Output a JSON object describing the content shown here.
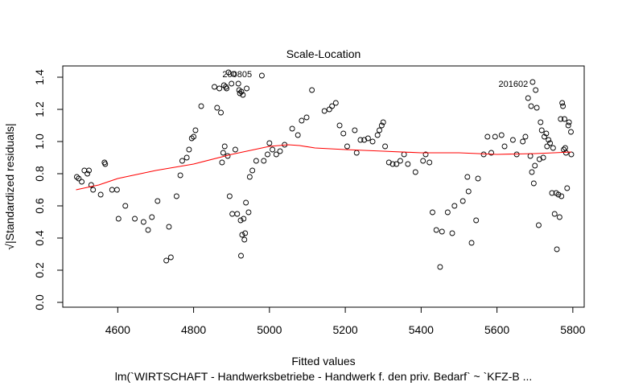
{
  "chart_data": {
    "type": "scatter",
    "title": "Scale-Location",
    "xlabel": "Fitted values",
    "ylabel_radical": "√",
    "ylabel": "|Standardized residuals|",
    "subtitle": "lm(`WIRTSCHAFT - Handwerksbetriebe - Handwerk f. den priv. Bedarf` ~ `KFZ-B ...",
    "xlim": [
      4455,
      5830
    ],
    "ylim": [
      -0.03,
      1.47
    ],
    "x_ticks": [
      4600,
      4800,
      5000,
      5200,
      5400,
      5600,
      5800
    ],
    "x_tick_labels": [
      "4600",
      "4800",
      "5000",
      "5200",
      "5400",
      "5600",
      "5800"
    ],
    "y_ticks": [
      0.0,
      0.2,
      0.4,
      0.6,
      0.8,
      1.0,
      1.2,
      1.4
    ],
    "y_tick_labels": [
      "0.0",
      "0.2",
      "0.4",
      "0.6",
      "0.8",
      "1.0",
      "1.2",
      "1.4"
    ],
    "grid": false,
    "colors": {
      "points": "#000000",
      "smoother": "#ff0000",
      "frame": "#000000"
    },
    "annotations": [
      {
        "text": "200805",
        "x": 4915,
        "y": 1.42,
        "anchor": "middle"
      },
      {
        "text": "201602",
        "x": 5682,
        "y": 1.36,
        "anchor": "end"
      }
    ],
    "points": [
      [
        4492,
        0.78
      ],
      [
        4497,
        0.77
      ],
      [
        4505,
        0.75
      ],
      [
        4512,
        0.82
      ],
      [
        4520,
        0.8
      ],
      [
        4524,
        0.82
      ],
      [
        4530,
        0.73
      ],
      [
        4535,
        0.7
      ],
      [
        4555,
        0.67
      ],
      [
        4565,
        0.87
      ],
      [
        4567,
        0.86
      ],
      [
        4585,
        0.7
      ],
      [
        4598,
        0.7
      ],
      [
        4602,
        0.52
      ],
      [
        4620,
        0.6
      ],
      [
        4645,
        0.52
      ],
      [
        4668,
        0.5
      ],
      [
        4680,
        0.45
      ],
      [
        4690,
        0.53
      ],
      [
        4705,
        0.63
      ],
      [
        4728,
        0.26
      ],
      [
        4735,
        0.47
      ],
      [
        4740,
        0.28
      ],
      [
        4755,
        0.66
      ],
      [
        4765,
        0.79
      ],
      [
        4770,
        0.88
      ],
      [
        4782,
        0.9
      ],
      [
        4788,
        0.95
      ],
      [
        4795,
        1.02
      ],
      [
        4800,
        1.03
      ],
      [
        4805,
        1.07
      ],
      [
        4820,
        1.22
      ],
      [
        4855,
        1.34
      ],
      [
        4862,
        1.21
      ],
      [
        4868,
        1.33
      ],
      [
        4872,
        1.18
      ],
      [
        4875,
        0.87
      ],
      [
        4878,
        0.93
      ],
      [
        4880,
        1.35
      ],
      [
        4882,
        0.97
      ],
      [
        4885,
        1.34
      ],
      [
        4887,
        1.33
      ],
      [
        4890,
        0.91
      ],
      [
        4892,
        1.43
      ],
      [
        4895,
        0.66
      ],
      [
        4900,
        1.36
      ],
      [
        4902,
        0.55
      ],
      [
        4905,
        1.42
      ],
      [
        4910,
        0.95
      ],
      [
        4915,
        0.55
      ],
      [
        4918,
        1.36
      ],
      [
        4920,
        1.32
      ],
      [
        4922,
        1.3
      ],
      [
        4924,
        0.51
      ],
      [
        4925,
        0.29
      ],
      [
        4926,
        1.31
      ],
      [
        4928,
        0.42
      ],
      [
        4930,
        1.29
      ],
      [
        4932,
        0.52
      ],
      [
        4934,
        0.39
      ],
      [
        4936,
        0.43
      ],
      [
        4938,
        0.62
      ],
      [
        4940,
        1.33
      ],
      [
        4945,
        0.56
      ],
      [
        4948,
        0.78
      ],
      [
        4955,
        0.82
      ],
      [
        4965,
        0.88
      ],
      [
        4980,
        1.41
      ],
      [
        4985,
        0.88
      ],
      [
        4995,
        0.92
      ],
      [
        5000,
        0.99
      ],
      [
        5008,
        0.95
      ],
      [
        5018,
        0.92
      ],
      [
        5028,
        0.94
      ],
      [
        5040,
        0.98
      ],
      [
        5060,
        1.08
      ],
      [
        5075,
        1.04
      ],
      [
        5085,
        1.13
      ],
      [
        5098,
        1.15
      ],
      [
        5112,
        1.32
      ],
      [
        5145,
        1.19
      ],
      [
        5158,
        1.2
      ],
      [
        5165,
        1.22
      ],
      [
        5175,
        1.24
      ],
      [
        5185,
        1.1
      ],
      [
        5195,
        1.05
      ],
      [
        5205,
        0.97
      ],
      [
        5225,
        1.07
      ],
      [
        5230,
        0.93
      ],
      [
        5240,
        1.01
      ],
      [
        5250,
        1.01
      ],
      [
        5260,
        1.02
      ],
      [
        5272,
        1.0
      ],
      [
        5285,
        1.04
      ],
      [
        5290,
        1.07
      ],
      [
        5296,
        1.1
      ],
      [
        5300,
        1.12
      ],
      [
        5305,
        0.97
      ],
      [
        5315,
        0.87
      ],
      [
        5325,
        0.86
      ],
      [
        5335,
        0.86
      ],
      [
        5345,
        0.88
      ],
      [
        5355,
        0.92
      ],
      [
        5365,
        0.86
      ],
      [
        5385,
        0.81
      ],
      [
        5405,
        0.88
      ],
      [
        5412,
        0.92
      ],
      [
        5422,
        0.87
      ],
      [
        5430,
        0.56
      ],
      [
        5440,
        0.45
      ],
      [
        5450,
        0.22
      ],
      [
        5455,
        0.44
      ],
      [
        5470,
        0.56
      ],
      [
        5482,
        0.43
      ],
      [
        5488,
        0.6
      ],
      [
        5510,
        0.63
      ],
      [
        5522,
        0.78
      ],
      [
        5525,
        0.69
      ],
      [
        5533,
        0.37
      ],
      [
        5545,
        0.51
      ],
      [
        5550,
        0.77
      ],
      [
        5565,
        0.92
      ],
      [
        5575,
        1.03
      ],
      [
        5585,
        0.93
      ],
      [
        5595,
        1.03
      ],
      [
        5612,
        1.04
      ],
      [
        5620,
        0.97
      ],
      [
        5642,
        1.01
      ],
      [
        5652,
        0.92
      ],
      [
        5668,
        1.0
      ],
      [
        5675,
        1.03
      ],
      [
        5682,
        1.27
      ],
      [
        5688,
        0.91
      ],
      [
        5690,
        1.22
      ],
      [
        5692,
        0.81
      ],
      [
        5694,
        1.37
      ],
      [
        5697,
        0.74
      ],
      [
        5700,
        0.85
      ],
      [
        5702,
        1.32
      ],
      [
        5705,
        1.21
      ],
      [
        5710,
        0.48
      ],
      [
        5712,
        0.89
      ],
      [
        5715,
        1.12
      ],
      [
        5718,
        1.07
      ],
      [
        5722,
        0.9
      ],
      [
        5725,
        1.03
      ],
      [
        5730,
        1.05
      ],
      [
        5732,
        0.97
      ],
      [
        5736,
        1.01
      ],
      [
        5740,
        0.99
      ],
      [
        5745,
        0.68
      ],
      [
        5748,
        0.96
      ],
      [
        5752,
        0.55
      ],
      [
        5756,
        0.68
      ],
      [
        5758,
        0.33
      ],
      [
        5762,
        0.67
      ],
      [
        5765,
        0.53
      ],
      [
        5768,
        1.14
      ],
      [
        5770,
        0.66
      ],
      [
        5772,
        1.24
      ],
      [
        5774,
        1.22
      ],
      [
        5776,
        0.95
      ],
      [
        5778,
        1.14
      ],
      [
        5780,
        0.96
      ],
      [
        5782,
        0.93
      ],
      [
        5785,
        0.71
      ],
      [
        5788,
        1.1
      ],
      [
        5790,
        1.12
      ],
      [
        5795,
        1.06
      ],
      [
        5796,
        0.92
      ]
    ],
    "smoother": [
      [
        4490,
        0.7
      ],
      [
        4550,
        0.73
      ],
      [
        4600,
        0.77
      ],
      [
        4700,
        0.82
      ],
      [
        4800,
        0.86
      ],
      [
        4900,
        0.92
      ],
      [
        4960,
        0.95
      ],
      [
        5000,
        0.97
      ],
      [
        5050,
        0.98
      ],
      [
        5080,
        0.975
      ],
      [
        5120,
        0.96
      ],
      [
        5200,
        0.95
      ],
      [
        5300,
        0.94
      ],
      [
        5400,
        0.93
      ],
      [
        5500,
        0.93
      ],
      [
        5600,
        0.92
      ],
      [
        5700,
        0.925
      ],
      [
        5750,
        0.93
      ],
      [
        5796,
        0.935
      ]
    ]
  }
}
